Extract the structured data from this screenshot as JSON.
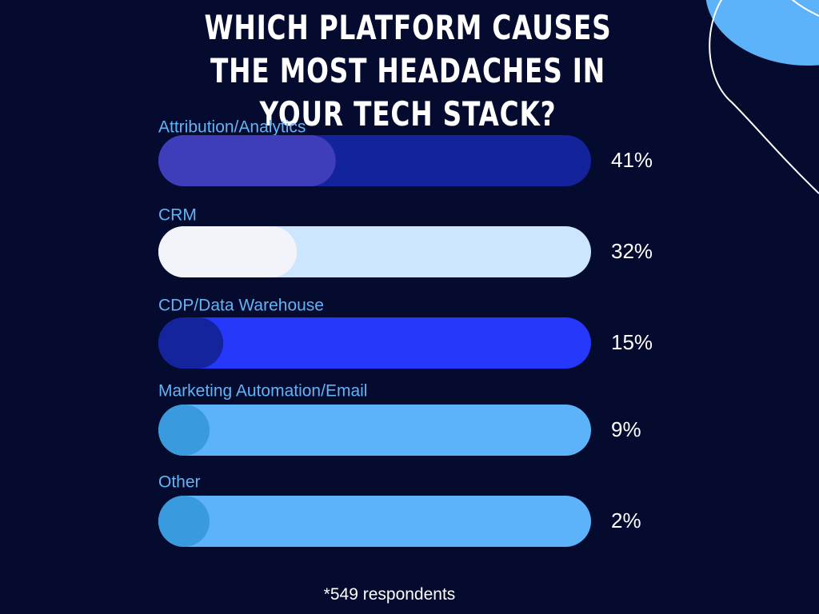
{
  "chart_data": {
    "type": "bar",
    "orientation": "horizontal",
    "title": "Which platform causes the most headaches in your tech stack?",
    "categories": [
      "Attribution/Analytics",
      "CRM",
      "CDP/Data Warehouse",
      "Marketing Automation/Email",
      "Other"
    ],
    "values": [
      41,
      32,
      15,
      9,
      2
    ],
    "value_labels": [
      "41%",
      "32%",
      "15%",
      "9%",
      "2%"
    ],
    "xlim": [
      0,
      100
    ],
    "grid": false,
    "legend": "none",
    "footnote": "*549 respondents"
  },
  "style": {
    "background": "#050b2e",
    "label_color": "#63b3f5",
    "value_color": "#ffffff",
    "track_colors": [
      "#12239c",
      "#cce6ff",
      "#2538fb",
      "#5db3fa",
      "#5db3fa"
    ],
    "fill_colors": [
      "#3f3dba",
      "#f3f4f9",
      "#13249c",
      "#3a9ade",
      "#3a9ade"
    ],
    "decor_blob": "#5db3fa",
    "decor_line": "#ffffff"
  }
}
